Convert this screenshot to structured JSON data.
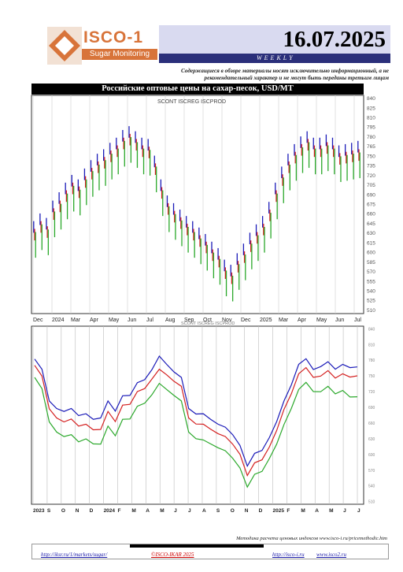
{
  "header": {
    "logo_name": "ISCO-1",
    "logo_subtitle": "Sugar Monitoring",
    "report_date": "16.07.2025",
    "frequency": "WEEKLY",
    "disclaimer": "Содержащиеся в обзоре материалы носят исключительно информационный, а не рекомендательный характер и не могут быть переданы третьим лицам"
  },
  "chart_data": [
    {
      "type": "ohlc",
      "title": "Российские оптовые цены на сахар-песок, USD/MT",
      "legend": "SCONT ISCREG ISCPROD",
      "x_tick_labels": [
        "Dec",
        "2024",
        "Mar",
        "Apr",
        "May",
        "Jun",
        "Jul",
        "Aug",
        "Sep",
        "Oct",
        "Nov",
        "Dec",
        "2025",
        "Mar",
        "Apr",
        "May",
        "Jun",
        "Jul"
      ],
      "ylim": [
        505,
        845
      ],
      "y_ticks": [
        840,
        825,
        810,
        795,
        780,
        765,
        750,
        735,
        720,
        705,
        690,
        675,
        660,
        645,
        630,
        615,
        600,
        585,
        570,
        555,
        540,
        525,
        510
      ],
      "series_colors": {
        "high": "#1a1ab8",
        "mid": "#d42020",
        "low": "#2aa82a"
      },
      "series": [
        {
          "name": "SCONT",
          "color": "#1a1ab8",
          "values": [
            640,
            652,
            645,
            672,
            685,
            700,
            712,
            705,
            722,
            735,
            745,
            752,
            762,
            770,
            782,
            788,
            780,
            770,
            768,
            742,
            705,
            680,
            668,
            658,
            648,
            640,
            630,
            620,
            608,
            598,
            580,
            572,
            590,
            605,
            622,
            635,
            648,
            670,
            700,
            725,
            745,
            760,
            772,
            780,
            770,
            770,
            775,
            770,
            758,
            760,
            762,
            765
          ]
        },
        {
          "name": "ISCREG",
          "color": "#d42020",
          "values": [
            628,
            640,
            632,
            660,
            672,
            688,
            700,
            694,
            710,
            723,
            733,
            740,
            750,
            758,
            770,
            776,
            768,
            758,
            756,
            730,
            693,
            668,
            656,
            646,
            636,
            628,
            618,
            608,
            596,
            586,
            568,
            560,
            578,
            593,
            610,
            623,
            636,
            658,
            688,
            713,
            733,
            748,
            760,
            768,
            758,
            758,
            763,
            758,
            746,
            748,
            750,
            752
          ]
        },
        {
          "name": "ISCPROD",
          "color": "#2aa82a",
          "values": [
            612,
            624,
            616,
            644,
            656,
            672,
            684,
            678,
            694,
            707,
            717,
            724,
            734,
            742,
            754,
            760,
            752,
            742,
            740,
            714,
            677,
            652,
            640,
            630,
            620,
            612,
            602,
            592,
            580,
            570,
            552,
            544,
            562,
            577,
            594,
            607,
            620,
            642,
            672,
            697,
            717,
            732,
            744,
            752,
            742,
            742,
            747,
            742,
            730,
            732,
            734,
            736
          ]
        }
      ]
    },
    {
      "type": "line",
      "title": "SCONT ISCREG ISCPROD",
      "x_tick_labels": [
        "2023",
        "S",
        "O",
        "N",
        "D",
        "2024",
        "F",
        "M",
        "A",
        "M",
        "J",
        "J",
        "A",
        "S",
        "O",
        "N",
        "D",
        "2025",
        "F",
        "M",
        "A",
        "M",
        "J",
        "J"
      ],
      "ylim": [
        505,
        845
      ],
      "y_ticks": [
        840,
        810,
        780,
        750,
        720,
        690,
        660,
        630,
        600,
        570,
        540,
        510
      ],
      "series": [
        {
          "name": "SCONT",
          "color": "#1a1ab8",
          "values": [
            780,
            765,
            700,
            690,
            680,
            690,
            672,
            680,
            665,
            672,
            700,
            685,
            710,
            715,
            735,
            745,
            760,
            790,
            770,
            760,
            745,
            690,
            675,
            680,
            665,
            660,
            650,
            640,
            615,
            580,
            600,
            610,
            630,
            665,
            700,
            735,
            770,
            785,
            760,
            770,
            775,
            765,
            770,
            768,
            765
          ]
        },
        {
          "name": "ISCREG",
          "color": "#d42020",
          "values": [
            768,
            752,
            685,
            672,
            660,
            670,
            652,
            660,
            645,
            650,
            680,
            665,
            692,
            698,
            718,
            728,
            742,
            765,
            750,
            742,
            728,
            672,
            656,
            660,
            646,
            642,
            632,
            622,
            598,
            562,
            582,
            592,
            612,
            648,
            684,
            718,
            752,
            768,
            745,
            752,
            758,
            748,
            752,
            750,
            748
          ]
        },
        {
          "name": "ISCPROD",
          "color": "#2aa82a",
          "values": [
            745,
            728,
            660,
            645,
            632,
            640,
            622,
            632,
            618,
            622,
            652,
            638,
            665,
            670,
            690,
            700,
            712,
            738,
            722,
            715,
            700,
            645,
            628,
            630,
            618,
            615,
            605,
            595,
            572,
            540,
            560,
            570,
            590,
            622,
            655,
            690,
            722,
            740,
            718,
            722,
            728,
            718,
            720,
            712,
            708
          ]
        }
      ]
    }
  ],
  "footer": {
    "note": "Методика расчета ценовых индексов www.isco-i.ru/pricemethodic.htm",
    "link1": "http://iksr.ru/1/markets/sugar/",
    "copyright": "©ISCO-IKAR 2025",
    "link2": "http://isco-i.ru",
    "link3": "www.isco2.ru"
  }
}
